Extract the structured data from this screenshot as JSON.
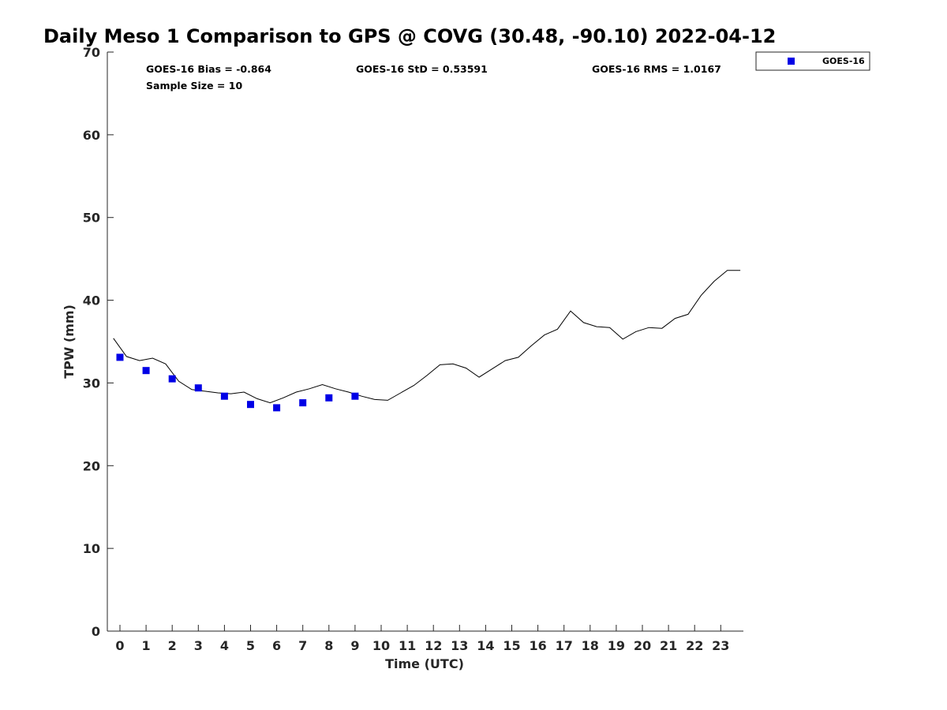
{
  "chart_data": {
    "type": "scatter",
    "title": "Daily Meso 1 Comparison to GPS @ COVG (30.48, -90.10) 2022-04-12",
    "xlabel": "Time (UTC)",
    "ylabel": "TPW (mm)",
    "xlim": [
      -0.5,
      23.8
    ],
    "ylim": [
      0,
      70
    ],
    "x_ticks": [
      "0",
      "1",
      "2",
      "3",
      "4",
      "5",
      "6",
      "7",
      "8",
      "9",
      "10",
      "11",
      "12",
      "13",
      "14",
      "15",
      "16",
      "17",
      "18",
      "19",
      "20",
      "21",
      "22",
      "23"
    ],
    "y_ticks": [
      "0",
      "10",
      "20",
      "30",
      "40",
      "50",
      "60",
      "70"
    ],
    "grid": false,
    "legend_position": "top-right, outside plot area",
    "stats": {
      "bias": "GOES-16 Bias = -0.864",
      "std": "GOES-16 StD = 0.53591",
      "rms": "GOES-16 RMS = 1.0167",
      "sample": "Sample Size = 10"
    },
    "series": [
      {
        "name": "GOES-16",
        "style": "square markers",
        "color": "#0000e6",
        "x": [
          0,
          1,
          2,
          3,
          4,
          5,
          6,
          7,
          8,
          9
        ],
        "y": [
          33.1,
          31.5,
          30.5,
          29.4,
          28.4,
          27.4,
          27.0,
          27.6,
          28.2,
          28.4
        ]
      },
      {
        "style": "line",
        "color": "#000000",
        "x": [
          -0.25,
          0.25,
          0.75,
          1.25,
          1.75,
          2.25,
          2.75,
          3.25,
          3.75,
          4.25,
          4.75,
          5.25,
          5.75,
          6.25,
          6.75,
          7.25,
          7.75,
          8.25,
          8.75,
          9.25,
          9.75,
          10.25,
          10.75,
          11.25,
          11.75,
          12.25,
          12.75,
          13.25,
          13.75,
          14.25,
          14.75,
          15.25,
          15.75,
          16.25,
          16.75,
          17.25,
          17.75,
          18.25,
          18.75,
          19.25,
          19.75,
          20.25,
          20.75,
          21.25,
          21.75,
          22.25,
          22.75,
          23.25,
          23.75
        ],
        "y": [
          35.4,
          33.2,
          32.7,
          33.0,
          32.3,
          30.2,
          29.2,
          29.0,
          28.8,
          28.7,
          28.9,
          28.1,
          27.6,
          28.2,
          28.9,
          29.3,
          29.8,
          29.3,
          28.9,
          28.4,
          28.0,
          27.9,
          28.8,
          29.7,
          30.9,
          32.2,
          32.3,
          31.8,
          30.7,
          31.7,
          32.7,
          33.1,
          34.5,
          35.8,
          36.5,
          38.7,
          37.3,
          36.8,
          36.7,
          35.3,
          36.2,
          36.7,
          36.6,
          37.8,
          38.3,
          40.6,
          42.3,
          43.6,
          43.6
        ]
      }
    ]
  }
}
